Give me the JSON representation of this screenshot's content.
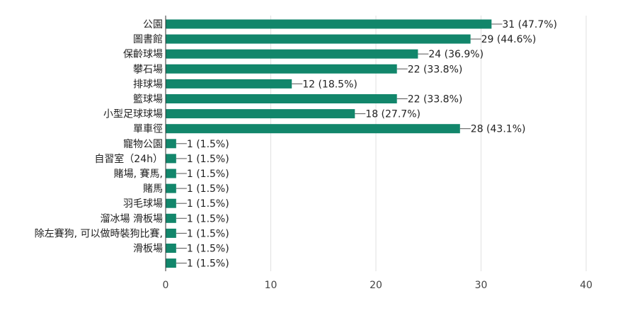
{
  "chart_data": {
    "type": "bar",
    "orientation": "horizontal",
    "categories": [
      "公園",
      "圖書館",
      "保齡球場",
      "攀石場",
      "排球場",
      "籃球場",
      "小型足球球場",
      "單車徑",
      "寵物公園",
      "自習室（24h）",
      "賭場, 賽馬,",
      "賭馬",
      "羽毛球場",
      "溜冰場 滑板場",
      "除左賽狗, 可以做時裝狗比賽,",
      "滑板場",
      ""
    ],
    "values": [
      31,
      29,
      24,
      22,
      12,
      22,
      18,
      28,
      1,
      1,
      1,
      1,
      1,
      1,
      1,
      1,
      1
    ],
    "labels": [
      "31 (47.7%)",
      "29 (44.6%)",
      "24 (36.9%)",
      "22 (33.8%)",
      "12 (18.5%)",
      "22 (33.8%)",
      "18 (27.7%)",
      "28 (43.1%)",
      "1 (1.5%)",
      "1 (1.5%)",
      "1 (1.5%)",
      "1 (1.5%)",
      "1 (1.5%)",
      "1 (1.5%)",
      "1 (1.5%)",
      "1 (1.5%)",
      "1 (1.5%)"
    ],
    "x_ticks": [
      "0",
      "10",
      "20",
      "30",
      "40"
    ],
    "xlim": [
      0,
      40
    ],
    "grid": true,
    "bar_color": "#12866b",
    "title": "",
    "xlabel": "",
    "ylabel": ""
  }
}
